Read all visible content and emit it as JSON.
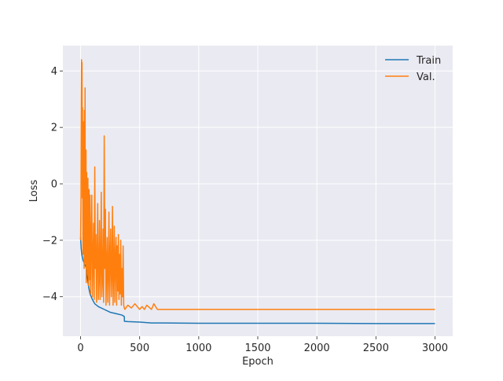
{
  "chart_data": {
    "type": "line",
    "title": "",
    "xlabel": "Epoch",
    "ylabel": "Loss",
    "xlim": [
      -150,
      3150
    ],
    "ylim": [
      -5.4,
      4.9
    ],
    "x_ticks": [
      0,
      500,
      1000,
      1500,
      2000,
      2500,
      3000
    ],
    "x_tick_labels": [
      "0",
      "500",
      "1000",
      "1500",
      "2000",
      "2500",
      "3000"
    ],
    "y_ticks": [
      -4,
      -2,
      0,
      2,
      4
    ],
    "y_tick_labels": [
      "−4",
      "−2",
      "0",
      "2",
      "4"
    ],
    "grid": true,
    "legend": "top-right",
    "series": [
      {
        "name": "Train",
        "color": "#1f77b4",
        "x": [
          0,
          5,
          10,
          15,
          20,
          30,
          40,
          50,
          60,
          70,
          80,
          100,
          120,
          150,
          200,
          250,
          300,
          350,
          370,
          371,
          400,
          500,
          600,
          700,
          1000,
          1500,
          2000,
          2500,
          3000
        ],
        "y": [
          -1.9,
          -2.3,
          -2.5,
          -2.6,
          -2.7,
          -2.8,
          -2.9,
          -3.0,
          -3.4,
          -3.7,
          -3.9,
          -4.1,
          -4.25,
          -4.35,
          -4.45,
          -4.55,
          -4.6,
          -4.65,
          -4.7,
          -4.87,
          -4.88,
          -4.9,
          -4.93,
          -4.93,
          -4.94,
          -4.94,
          -4.94,
          -4.95,
          -4.95
        ]
      },
      {
        "name": "Val.",
        "color": "#ff7f0e",
        "x": [
          0,
          3,
          6,
          8,
          10,
          12,
          14,
          16,
          18,
          20,
          22,
          24,
          26,
          28,
          30,
          32,
          34,
          36,
          38,
          40,
          42,
          44,
          46,
          48,
          50,
          52,
          54,
          56,
          58,
          60,
          62,
          64,
          66,
          68,
          70,
          72,
          75,
          78,
          80,
          85,
          90,
          95,
          100,
          105,
          110,
          115,
          120,
          125,
          130,
          135,
          140,
          145,
          150,
          155,
          160,
          165,
          170,
          175,
          180,
          185,
          190,
          195,
          200,
          205,
          210,
          215,
          220,
          225,
          230,
          235,
          240,
          245,
          250,
          255,
          260,
          265,
          270,
          275,
          280,
          285,
          290,
          295,
          300,
          305,
          310,
          315,
          320,
          325,
          330,
          335,
          340,
          345,
          350,
          355,
          360,
          365,
          370,
          375,
          400,
          430,
          460,
          500,
          520,
          540,
          560,
          600,
          620,
          650,
          700,
          1000,
          1500,
          2000,
          2500,
          3000
        ],
        "y": [
          -2.0,
          -0.6,
          3.0,
          4.4,
          1.2,
          4.3,
          -0.5,
          2.7,
          0.5,
          -2.5,
          2.2,
          1.4,
          -1.8,
          1.2,
          -3.0,
          2.6,
          0.8,
          -1.2,
          3.4,
          -2.8,
          0.3,
          -2.3,
          1.2,
          -3.5,
          -1.0,
          0.4,
          -3.0,
          -1.5,
          -0.3,
          -3.2,
          0.2,
          -2.5,
          -0.8,
          -3.6,
          -1.4,
          -0.2,
          -3.4,
          -1.0,
          -0.4,
          -3.9,
          -2.0,
          -0.4,
          -4.0,
          -2.8,
          -1.4,
          -4.1,
          0.6,
          -3.0,
          -1.8,
          -4.2,
          -2.6,
          -0.7,
          -4.1,
          -3.3,
          -1.3,
          -4.1,
          -2.9,
          -0.3,
          -4.0,
          -3.4,
          -1.6,
          -4.2,
          1.7,
          -3.0,
          -0.9,
          -4.3,
          -3.0,
          -1.9,
          -4.2,
          -3.1,
          -1.0,
          -4.3,
          -2.6,
          -1.6,
          -4.0,
          -3.2,
          -0.8,
          -4.3,
          -3.0,
          -1.5,
          -4.2,
          -2.7,
          -1.9,
          -4.3,
          -2.2,
          -3.8,
          -1.8,
          -4.1,
          -2.5,
          -3.9,
          -2.0,
          -4.3,
          -3.0,
          -4.0,
          -2.2,
          -4.3,
          -4.4,
          -4.45,
          -4.3,
          -4.4,
          -4.25,
          -4.45,
          -4.35,
          -4.45,
          -4.3,
          -4.45,
          -4.25,
          -4.45,
          -4.45,
          -4.45,
          -4.45,
          -4.45,
          -4.45,
          -4.45
        ]
      }
    ]
  }
}
